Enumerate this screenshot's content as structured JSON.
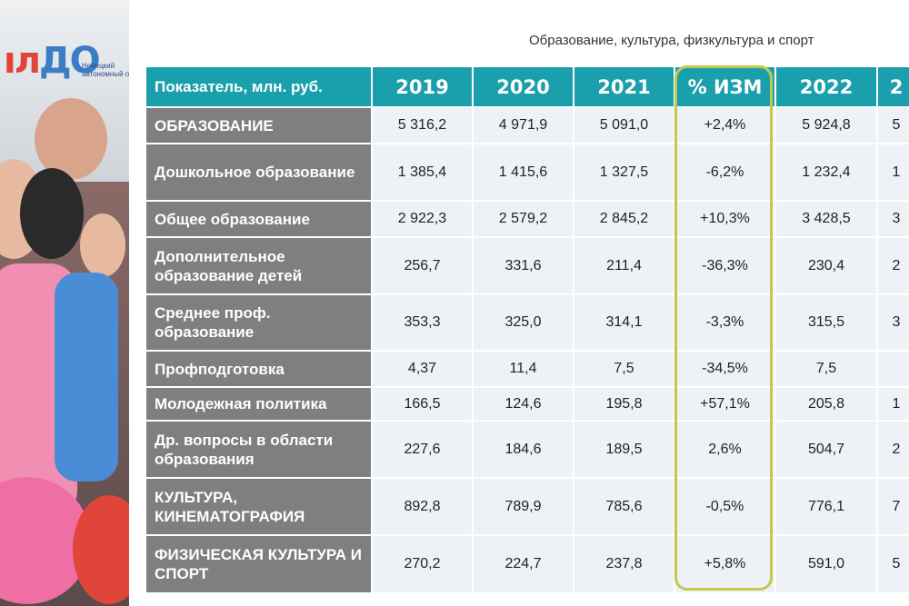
{
  "heading": "Образование, культура, физкультура и спорт",
  "logo": {
    "mark_left": "ıл",
    "mark_right": "ДО",
    "okrug_line1": "Ненецкий",
    "okrug_line2": "автономный окр"
  },
  "table": {
    "headers": [
      "Показатель, млн. руб.",
      "2019",
      "2020",
      "2021",
      "% ИЗМ",
      "2022",
      "2"
    ],
    "rows": [
      {
        "label": "ОБРАЗОВАНИЕ",
        "values": [
          "5 316,2",
          "4 971,9",
          "5 091,0",
          "+2,4%",
          "5 924,8",
          "5"
        ]
      },
      {
        "label": "Дошкольное образование",
        "values": [
          "1 385,4",
          "1 415,6",
          "1 327,5",
          "-6,2%",
          "1 232,4",
          "1"
        ]
      },
      {
        "label": "Общее образование",
        "values": [
          "2 922,3",
          "2 579,2",
          "2 845,2",
          "+10,3%",
          "3 428,5",
          "3"
        ]
      },
      {
        "label": "Дополнительное образование детей",
        "values": [
          "256,7",
          "331,6",
          "211,4",
          "-36,3%",
          "230,4",
          "2"
        ]
      },
      {
        "label": "Среднее проф. образование",
        "values": [
          "353,3",
          "325,0",
          "314,1",
          "-3,3%",
          "315,5",
          "3"
        ]
      },
      {
        "label": "Профподготовка",
        "values": [
          "4,37",
          "11,4",
          "7,5",
          "-34,5%",
          "7,5",
          ""
        ]
      },
      {
        "label": "Молодежная политика",
        "values": [
          "166,5",
          "124,6",
          "195,8",
          "+57,1%",
          "205,8",
          "1"
        ]
      },
      {
        "label": "Др. вопросы в области образования",
        "values": [
          "227,6",
          "184,6",
          "189,5",
          "2,6%",
          "504,7",
          "2"
        ]
      },
      {
        "label": "КУЛЬТУРА, КИНЕМАТОГРАФИЯ",
        "values": [
          "892,8",
          "789,9",
          "785,6",
          "-0,5%",
          "776,1",
          "7"
        ]
      },
      {
        "label": "ФИЗИЧЕСКАЯ КУЛЬТУРА И СПОРТ",
        "values": [
          "270,2",
          "224,7",
          "237,8",
          "+5,8%",
          "591,0",
          "5"
        ]
      }
    ]
  },
  "colors": {
    "header_bg": "#1aa0ad",
    "label_bg": "#7f7f7f",
    "cell_bg": "#eef2f6",
    "highlight_border": "#c3c94a"
  }
}
